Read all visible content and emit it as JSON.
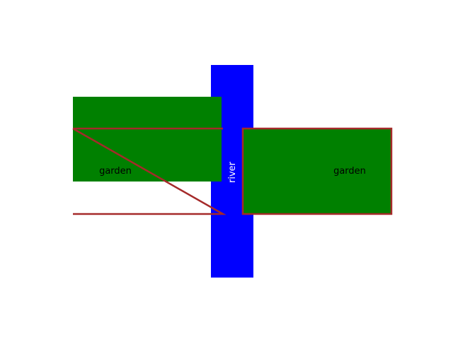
{
  "diagram": {
    "labels": {
      "garden_left": "garden",
      "garden_right": "garden",
      "river": "river"
    },
    "colors": {
      "background": "#ffffff",
      "garden_fill": "#008000",
      "river_fill": "#0000ff",
      "outline": "#a52a2a",
      "garden_text": "#000000",
      "river_text": "#ffffff"
    }
  }
}
